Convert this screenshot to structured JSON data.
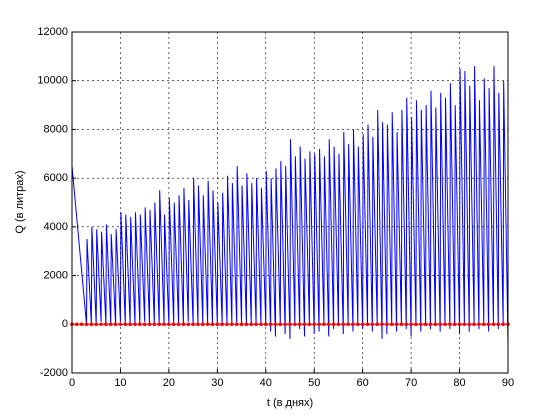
{
  "chart_data": {
    "type": "line",
    "xlabel": "t (в днях)",
    "ylabel": "Q (в литрах)",
    "xlim": [
      0,
      90
    ],
    "xticks": [
      0,
      10,
      20,
      30,
      40,
      50,
      60,
      70,
      80,
      90
    ],
    "ylim": [
      -2000,
      12000
    ],
    "yticks": [
      -2000,
      0,
      2000,
      4000,
      6000,
      8000,
      10000,
      12000
    ],
    "grid": true,
    "series": [
      {
        "color": "#0000ff",
        "marker": false,
        "x": [
          0,
          3,
          3.1,
          4,
          4.1,
          5,
          5.1,
          6,
          6.1,
          7,
          7.1,
          8,
          8.1,
          9,
          9.1,
          10,
          10.1,
          11,
          11.1,
          12,
          12.1,
          13,
          13.1,
          14,
          14.1,
          15,
          15.1,
          16,
          16.1,
          17,
          17.1,
          18,
          18.1,
          19,
          19.1,
          20,
          20.1,
          21,
          21.1,
          22,
          22.1,
          23,
          23.1,
          24,
          24.1,
          25,
          25.1,
          26,
          26.1,
          27,
          27.1,
          28,
          28.1,
          29,
          29.1,
          30,
          30.1,
          31,
          31.1,
          32,
          32.1,
          33,
          33.1,
          34,
          34.1,
          35,
          35.1,
          36,
          36.1,
          37,
          37.1,
          38,
          38.1,
          39,
          39.1,
          40,
          40.1,
          41,
          41.1,
          42,
          42.1,
          43,
          43.1,
          44,
          44.1,
          45,
          45.1,
          46,
          46.1,
          47,
          47.1,
          48,
          48.1,
          49,
          49.1,
          50,
          50.1,
          51,
          51.1,
          52,
          52.1,
          53,
          53.1,
          54,
          54.1,
          55,
          55.1,
          56,
          56.1,
          57,
          57.1,
          58,
          58.1,
          59,
          59.1,
          60,
          60.1,
          61,
          61.1,
          62,
          62.1,
          63,
          63.1,
          64,
          64.1,
          65,
          65.1,
          66,
          66.1,
          67,
          67.1,
          68,
          68.1,
          69,
          69.1,
          70,
          70.1,
          71,
          71.1,
          72,
          72.1,
          73,
          73.1,
          74,
          74.1,
          75,
          75.1,
          76,
          76.1,
          77,
          77.1,
          78,
          78.1,
          79,
          79.1,
          80,
          80.1,
          81,
          81.1,
          82,
          82.1,
          83,
          83.1,
          84,
          84.1,
          85,
          85.1,
          86,
          86.1,
          87,
          87.1,
          88,
          88.1,
          89,
          89.1,
          90
        ],
        "values": [
          6500,
          0,
          3500,
          0,
          4000,
          0,
          3900,
          100,
          3800,
          0,
          4100,
          0,
          3700,
          0,
          3900,
          100,
          4600,
          0,
          4500,
          0,
          4400,
          0,
          4600,
          0,
          4500,
          100,
          4800,
          0,
          4700,
          0,
          5000,
          0,
          5500,
          0,
          4500,
          0,
          5200,
          0,
          5000,
          0,
          5300,
          0,
          5600,
          100,
          5100,
          0,
          6000,
          0,
          5700,
          0,
          5300,
          0,
          5900,
          0,
          5500,
          0,
          5000,
          0,
          5400,
          0,
          6100,
          0,
          5800,
          0,
          6500,
          0,
          5700,
          0,
          6200,
          0,
          5800,
          0,
          6000,
          0,
          5600,
          0,
          6300,
          -300,
          6000,
          -500,
          6400,
          0,
          6700,
          -400,
          6500,
          -600,
          7600,
          0,
          6900,
          -200,
          7300,
          -500,
          6800,
          0,
          7100,
          -400,
          7000,
          -300,
          7200,
          0,
          6900,
          -500,
          7600,
          -200,
          7300,
          0,
          7000,
          -400,
          7900,
          0,
          7400,
          -300,
          8000,
          0,
          7300,
          -200,
          7800,
          0,
          8200,
          -300,
          7700,
          0,
          8800,
          -600,
          8300,
          -400,
          8200,
          0,
          8700,
          -300,
          7900,
          0,
          8800,
          -200,
          9300,
          -500,
          8500,
          0,
          9200,
          -300,
          8800,
          0,
          9000,
          -200,
          9600,
          0,
          8900,
          -300,
          9500,
          0,
          9300,
          -200,
          9900,
          0,
          9000,
          -400,
          10500,
          0,
          10400,
          -300,
          9800,
          0,
          10600,
          -200,
          9200,
          0,
          10100,
          -300,
          9700,
          0,
          10600,
          -200,
          9500,
          0,
          10000,
          -800
        ]
      },
      {
        "color": "#ff0000",
        "marker": true,
        "x": [
          0,
          1,
          2,
          3,
          4,
          5,
          6,
          7,
          8,
          9,
          10,
          11,
          12,
          13,
          14,
          15,
          16,
          17,
          18,
          19,
          20,
          21,
          22,
          23,
          24,
          25,
          26,
          27,
          28,
          29,
          30,
          31,
          32,
          33,
          34,
          35,
          36,
          37,
          38,
          39,
          40,
          41,
          42,
          43,
          44,
          45,
          46,
          47,
          48,
          49,
          50,
          51,
          52,
          53,
          54,
          55,
          56,
          57,
          58,
          59,
          60,
          61,
          62,
          63,
          64,
          65,
          66,
          67,
          68,
          69,
          70,
          71,
          72,
          73,
          74,
          75,
          76,
          77,
          78,
          79,
          80,
          81,
          82,
          83,
          84,
          85,
          86,
          87,
          88,
          89,
          90
        ],
        "values": [
          0,
          0,
          0,
          0,
          0,
          0,
          0,
          0,
          0,
          0,
          0,
          0,
          0,
          0,
          0,
          0,
          0,
          0,
          0,
          0,
          0,
          0,
          0,
          0,
          0,
          0,
          0,
          0,
          0,
          0,
          0,
          0,
          0,
          0,
          0,
          0,
          0,
          0,
          0,
          0,
          0,
          0,
          0,
          0,
          0,
          0,
          0,
          0,
          0,
          0,
          0,
          0,
          0,
          0,
          0,
          0,
          0,
          0,
          0,
          0,
          0,
          0,
          0,
          0,
          0,
          0,
          0,
          0,
          0,
          0,
          0,
          0,
          0,
          0,
          0,
          0,
          0,
          0,
          0,
          0,
          0,
          0,
          0,
          0,
          0,
          0,
          0,
          0,
          0,
          0,
          0
        ]
      }
    ]
  }
}
